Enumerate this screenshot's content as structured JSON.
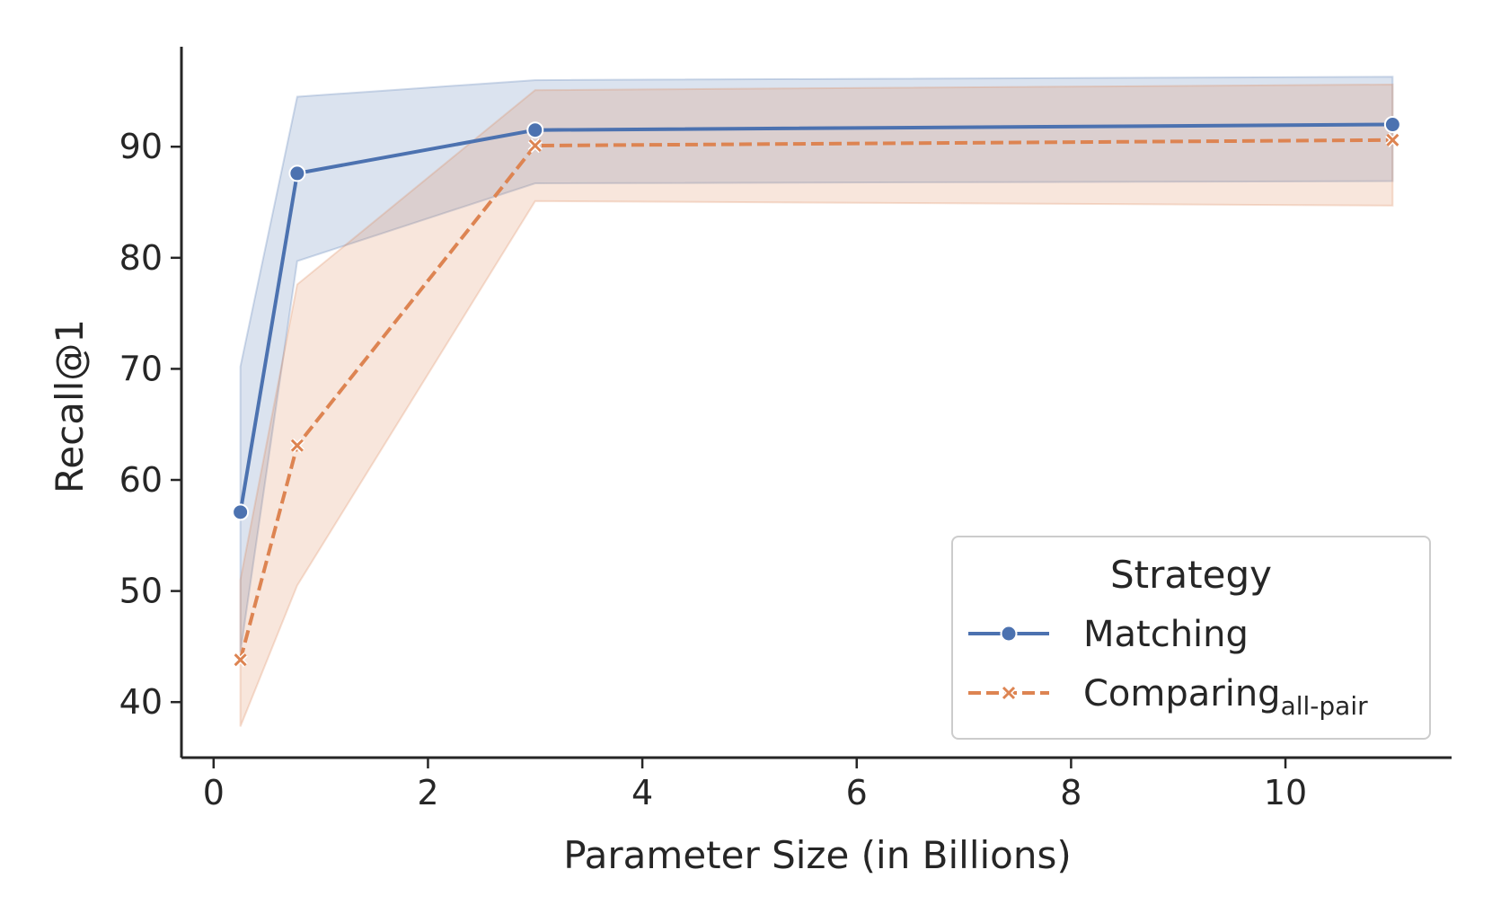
{
  "chart_data": {
    "type": "line",
    "xlabel": "Parameter Size (in Billions)",
    "ylabel": "Recall@1",
    "xlim": [
      -0.3,
      11.55
    ],
    "ylim": [
      35,
      99
    ],
    "x_ticks": [
      0,
      2,
      4,
      6,
      8,
      10
    ],
    "y_ticks": [
      40,
      50,
      60,
      70,
      80,
      90
    ],
    "grid": false,
    "legend": {
      "title": "Strategy",
      "placement": "lower-right"
    },
    "series": [
      {
        "name": "Matching",
        "color": "#4c72b0",
        "marker": "circle",
        "linestyle": "solid",
        "x": [
          0.25,
          0.78,
          3,
          11
        ],
        "y": [
          57.1,
          87.6,
          91.5,
          92.0
        ],
        "ci_low": [
          44.5,
          79.7,
          86.7,
          86.9
        ],
        "ci_high": [
          70.2,
          94.5,
          96.0,
          96.3
        ]
      },
      {
        "name": "Comparing",
        "name_subscript": "all-pair",
        "color": "#dd8452",
        "marker": "x",
        "linestyle": "dashed",
        "x": [
          0.25,
          0.78,
          3,
          11
        ],
        "y": [
          43.8,
          63.1,
          90.1,
          90.6
        ],
        "ci_low": [
          37.8,
          50.5,
          85.1,
          84.7
        ],
        "ci_high": [
          51.0,
          77.6,
          95.1,
          95.6
        ]
      }
    ]
  }
}
